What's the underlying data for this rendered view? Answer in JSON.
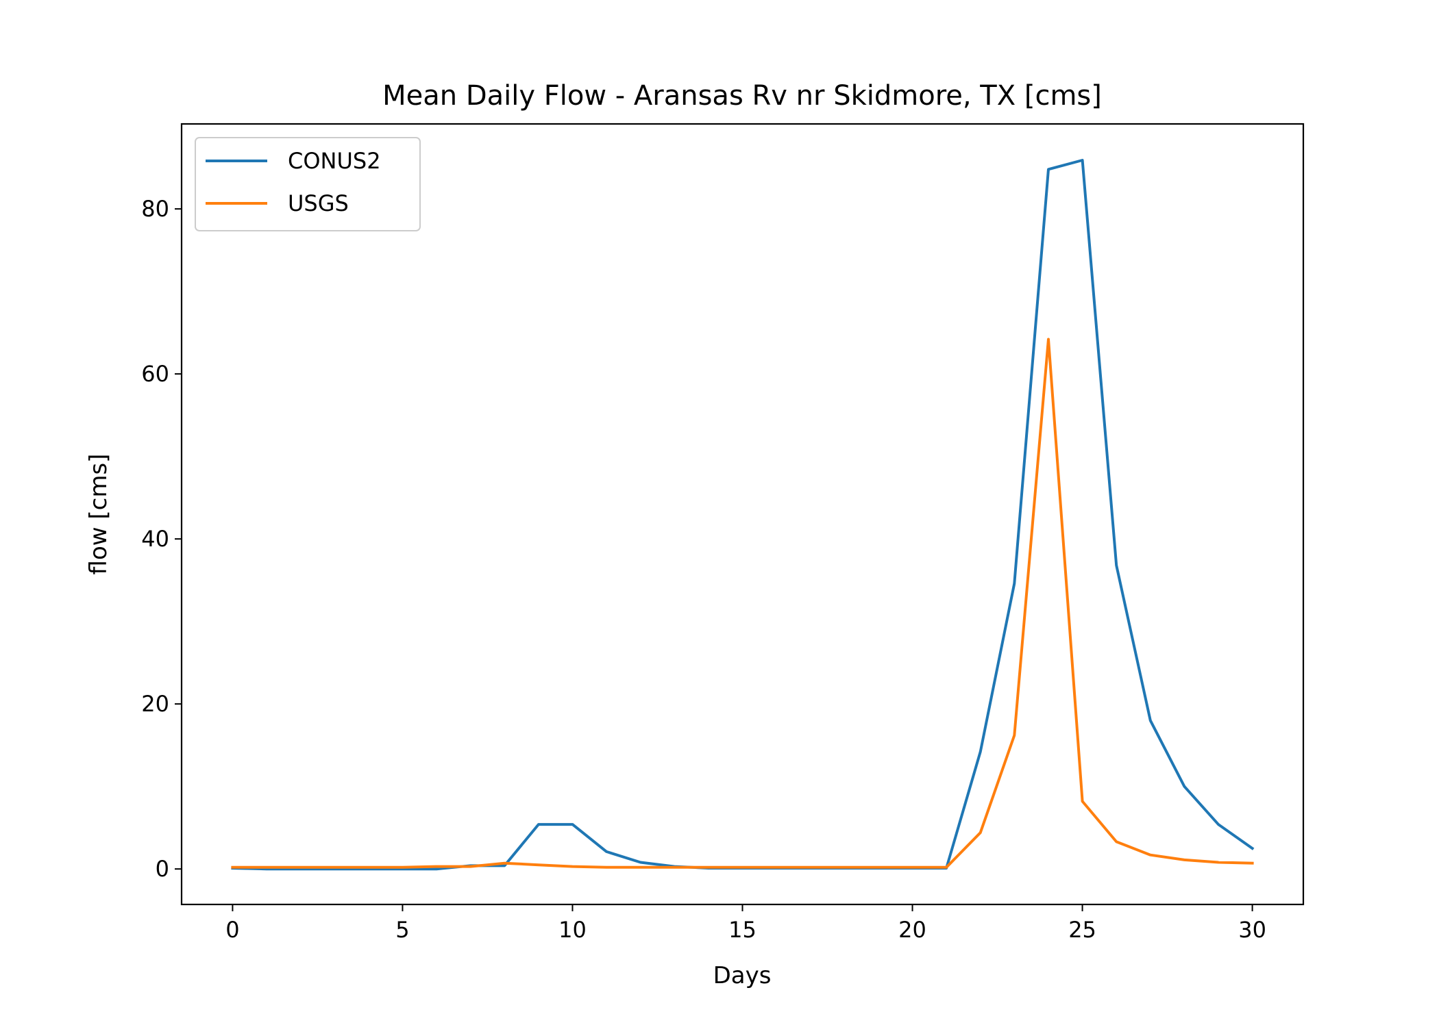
{
  "chart_data": {
    "type": "line",
    "title": "Mean Daily Flow - Aransas Rv nr Skidmore, TX [cms]",
    "xlabel": "Days",
    "ylabel": "flow [cms]",
    "xlim": [
      -1.5,
      31.5
    ],
    "ylim": [
      -4.3,
      90.3
    ],
    "xticks": [
      0,
      5,
      10,
      15,
      20,
      25,
      30
    ],
    "yticks": [
      0,
      20,
      40,
      60,
      80
    ],
    "grid": false,
    "legend_position": "top-left",
    "x": [
      0,
      1,
      2,
      3,
      4,
      5,
      6,
      7,
      8,
      9,
      10,
      11,
      12,
      13,
      14,
      15,
      16,
      17,
      18,
      19,
      20,
      21,
      22,
      23,
      24,
      25,
      26,
      27,
      28,
      29,
      30
    ],
    "series": [
      {
        "name": "CONUS2",
        "color": "#1f77b4",
        "values": [
          0.1,
          0.0,
          0.0,
          0.0,
          0.0,
          0.0,
          0.0,
          0.4,
          0.4,
          5.4,
          5.4,
          2.1,
          0.8,
          0.3,
          0.1,
          0.1,
          0.1,
          0.1,
          0.1,
          0.1,
          0.1,
          0.1,
          14.2,
          34.6,
          84.8,
          85.9,
          36.8,
          18.0,
          10.0,
          5.4,
          2.5
        ]
      },
      {
        "name": "USGS",
        "color": "#ff7f0e",
        "values": [
          0.2,
          0.2,
          0.2,
          0.2,
          0.2,
          0.2,
          0.3,
          0.3,
          0.7,
          0.5,
          0.3,
          0.2,
          0.2,
          0.2,
          0.2,
          0.2,
          0.2,
          0.2,
          0.2,
          0.2,
          0.2,
          0.2,
          4.4,
          16.2,
          64.2,
          8.2,
          3.3,
          1.7,
          1.1,
          0.8,
          0.7
        ]
      }
    ]
  }
}
